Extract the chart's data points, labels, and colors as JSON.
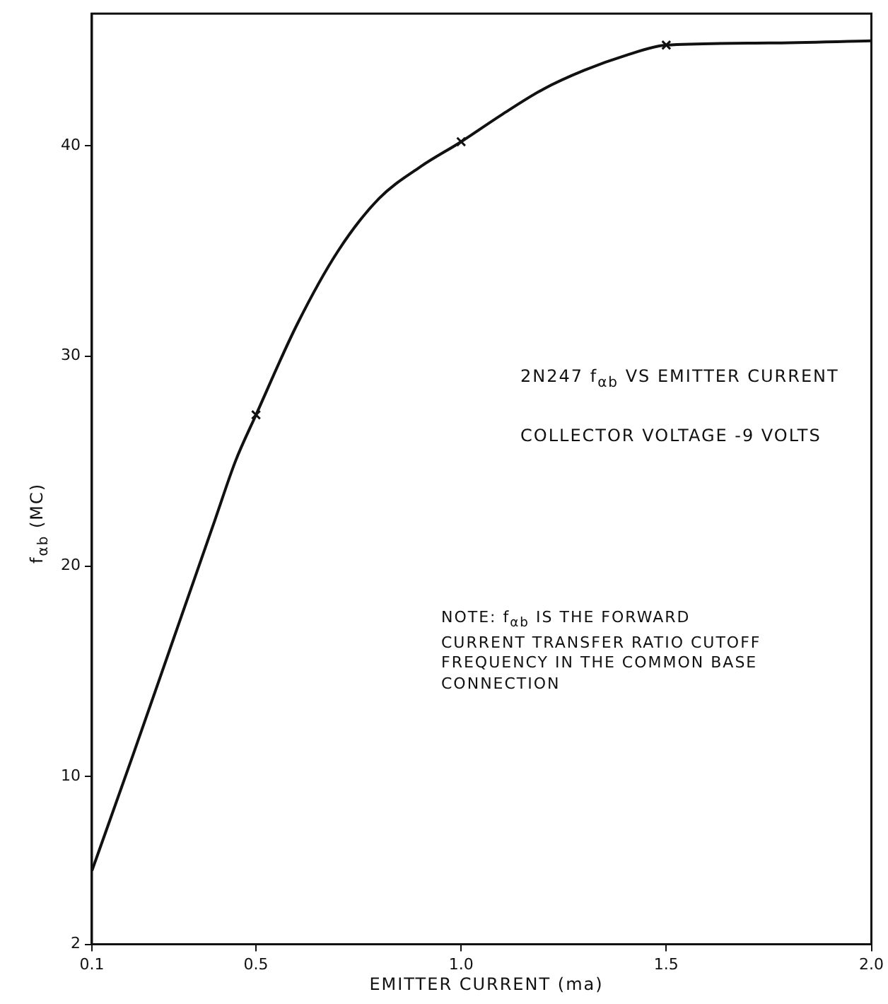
{
  "chart_data": {
    "type": "line",
    "title": "2N247 f$_{αb}$ VS EMITTER CURRENT",
    "subtitle": "COLLECTOR VOLTAGE -9 VOLTS",
    "xlabel": "EMITTER CURRENT (ma)",
    "ylabel": "f$_{αb}$ (MC)",
    "annotations": [
      "NOTE: f$_{αb}$ IS THE FORWARD CURRENT TRANSFER RATIO CUTOFF FREQUENCY IN THE COMMON BASE CONNECTION"
    ],
    "series": [
      {
        "color": "#111111",
        "marker": "none",
        "x": [
          0.1,
          0.2,
          0.3,
          0.4,
          0.45,
          0.5,
          0.6,
          0.7,
          0.8,
          0.9,
          1.0,
          1.1,
          1.2,
          1.3,
          1.4,
          1.5,
          1.75,
          2.0
        ],
        "values": [
          5.5,
          11,
          16.6,
          22.2,
          25,
          27.2,
          31.5,
          35,
          37.5,
          39,
          40.2,
          41.5,
          42.7,
          43.6,
          44.3,
          44.8,
          44.9,
          45
        ]
      },
      {
        "type": "scatter",
        "color": "#111111",
        "marker": "cross",
        "x": [
          0.5,
          1.0,
          1.5
        ],
        "values": [
          27.2,
          40.2,
          44.8
        ]
      }
    ],
    "xlim": [
      0.1,
      2.0
    ],
    "xticks": [
      0.1,
      0.5,
      {
        "value": 1,
        "label": "1.0"
      },
      1.5,
      {
        "value": 2,
        "label": "2.0"
      }
    ],
    "ylim": [
      2,
      46.3
    ],
    "yticks": [
      2,
      10,
      20,
      30,
      40
    ],
    "grid": false,
    "legend": false
  }
}
